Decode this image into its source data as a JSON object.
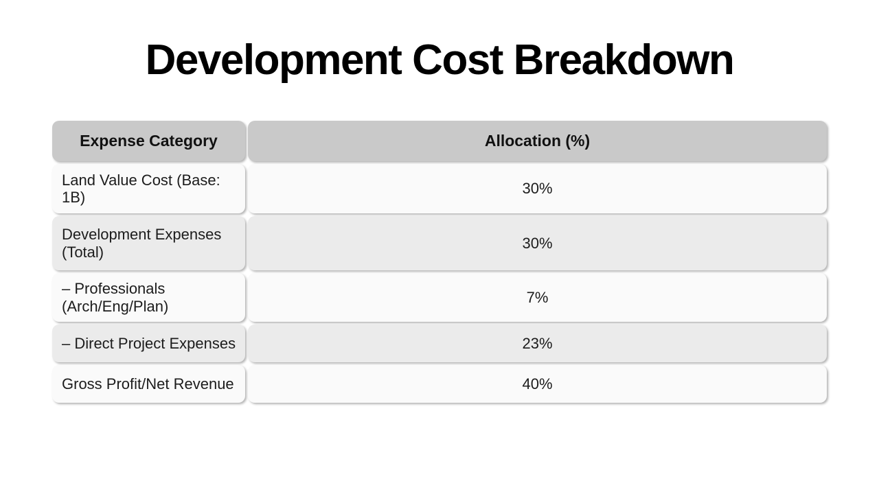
{
  "slide": {
    "title": "Development Cost Breakdown"
  },
  "table": {
    "headers": [
      "Expense Category",
      "Allocation (%)"
    ],
    "rows": [
      {
        "category": "Land Value Cost (Base: 1B)",
        "allocation": "30%"
      },
      {
        "category": "Development Expenses (Total)",
        "allocation": "30%"
      },
      {
        "category": "– Professionals (Arch/Eng/Plan)",
        "allocation": "7%"
      },
      {
        "category": "– Direct Project Expenses",
        "allocation": "23%"
      },
      {
        "category": "Gross Profit/Net Revenue",
        "allocation": "40%"
      }
    ]
  },
  "colors": {
    "background": "#ffffff",
    "header_bg": "#c9c9c9",
    "row_light_bg": "#fafafa",
    "row_dark_bg": "#ebebeb",
    "text": "#1c1c1c",
    "title_text": "#000000"
  },
  "chart_data": {
    "type": "table",
    "title": "Development Cost Breakdown",
    "columns": [
      "Expense Category",
      "Allocation (%)"
    ],
    "rows": [
      [
        "Land Value Cost (Base: 1B)",
        "30%"
      ],
      [
        "Development Expenses (Total)",
        "30%"
      ],
      [
        "– Professionals (Arch/Eng/Plan)",
        "7%"
      ],
      [
        "– Direct Project Expenses",
        "23%"
      ],
      [
        "Gross Profit/Net Revenue",
        "40%"
      ]
    ],
    "values_numeric": [
      30,
      30,
      7,
      23,
      40
    ]
  }
}
